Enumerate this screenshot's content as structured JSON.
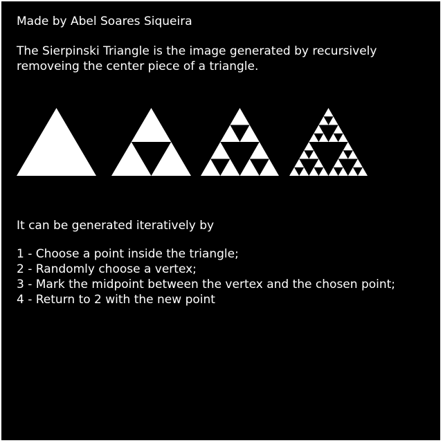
{
  "author_line": "Made by Abel Soares Siqueira",
  "description": {
    "line1": "The Sierpinski Triangle is the image generated by recursively",
    "line2": "removeing the center piece of a triangle."
  },
  "iterations_shown": [
    0,
    1,
    2,
    3
  ],
  "colors": {
    "background": "#000000",
    "foreground": "#ffffff"
  },
  "method": {
    "intro": "It can be generated iteratively by",
    "steps": [
      "1 - Choose a point inside the triangle;",
      "2 - Randomly choose a vertex;",
      "3 - Mark the midpoint between the vertex and the chosen point;",
      "4 - Return to 2 with the new point"
    ]
  }
}
